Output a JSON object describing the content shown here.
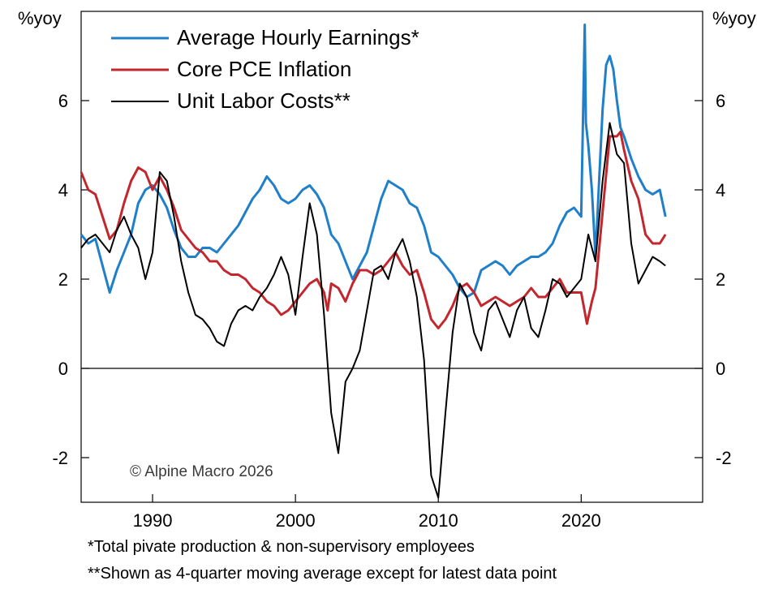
{
  "chart_data": {
    "type": "line",
    "left_axis_unit": "%yoy",
    "right_axis_unit": "%yoy",
    "x_range": [
      1985.0,
      2028.5
    ],
    "ylim": [
      -3.0,
      8.0
    ],
    "x_ticks": [
      1990,
      2000,
      2010,
      2020
    ],
    "x_tick_labels": [
      "1990",
      "2000",
      "2010",
      "2020"
    ],
    "y_ticks": [
      -2,
      0,
      2,
      4,
      6
    ],
    "y_tick_labels": [
      "-2",
      "0",
      "2",
      "4",
      "6"
    ],
    "zero_line": true,
    "grid": false,
    "legend_position": "top-left",
    "watermark": "© Alpine Macro 2026",
    "series": [
      {
        "name": "Average Hourly Earnings*",
        "color": "#1f7fc8",
        "x": [
          1985.0,
          1985.5,
          1986.0,
          1986.5,
          1987.0,
          1987.5,
          1988.0,
          1988.5,
          1989.0,
          1989.5,
          1990.0,
          1990.5,
          1991.0,
          1991.5,
          1992.0,
          1992.5,
          1993.0,
          1993.5,
          1994.0,
          1994.5,
          1995.0,
          1995.5,
          1996.0,
          1996.5,
          1997.0,
          1997.5,
          1998.0,
          1998.5,
          1999.0,
          1999.5,
          2000.0,
          2000.5,
          2001.0,
          2001.5,
          2002.0,
          2002.5,
          2003.0,
          2003.5,
          2004.0,
          2004.5,
          2005.0,
          2005.5,
          2006.0,
          2006.5,
          2007.0,
          2007.5,
          2008.0,
          2008.5,
          2009.0,
          2009.5,
          2010.0,
          2010.5,
          2011.0,
          2011.5,
          2012.0,
          2012.5,
          2013.0,
          2013.5,
          2014.0,
          2014.5,
          2015.0,
          2015.5,
          2016.0,
          2016.5,
          2017.0,
          2017.5,
          2018.0,
          2018.5,
          2019.0,
          2019.5,
          2020.0,
          2020.25,
          2020.33,
          2020.5,
          2020.75,
          2021.0,
          2021.3,
          2021.5,
          2021.75,
          2022.0,
          2022.25,
          2022.5,
          2022.75,
          2023.0,
          2023.5,
          2024.0,
          2024.5,
          2025.0,
          2025.5,
          2025.9
        ],
        "values": [
          3.0,
          2.8,
          2.9,
          2.3,
          1.7,
          2.2,
          2.6,
          3.0,
          3.7,
          4.0,
          4.1,
          3.9,
          3.6,
          3.1,
          2.7,
          2.5,
          2.5,
          2.7,
          2.7,
          2.6,
          2.8,
          3.0,
          3.2,
          3.5,
          3.8,
          4.0,
          4.3,
          4.1,
          3.8,
          3.7,
          3.8,
          4.0,
          4.1,
          3.9,
          3.6,
          3.0,
          2.8,
          2.4,
          2.0,
          2.3,
          2.6,
          3.2,
          3.8,
          4.2,
          4.1,
          4.0,
          3.7,
          3.6,
          3.2,
          2.6,
          2.5,
          2.3,
          2.1,
          1.8,
          1.6,
          1.7,
          2.2,
          2.3,
          2.4,
          2.3,
          2.1,
          2.3,
          2.4,
          2.5,
          2.5,
          2.6,
          2.8,
          3.2,
          3.5,
          3.6,
          3.4,
          7.7,
          5.5,
          5.0,
          4.0,
          2.5,
          4.5,
          5.8,
          6.8,
          7.0,
          6.7,
          6.0,
          5.4,
          5.2,
          4.7,
          4.3,
          4.0,
          3.9,
          4.0,
          3.4
        ]
      },
      {
        "name": "Core PCE Inflation",
        "color": "#c1272d",
        "x": [
          1985.0,
          1985.5,
          1986.0,
          1986.5,
          1987.0,
          1987.5,
          1988.0,
          1988.5,
          1989.0,
          1989.5,
          1990.0,
          1990.5,
          1991.0,
          1991.5,
          1992.0,
          1992.5,
          1993.0,
          1993.5,
          1994.0,
          1994.5,
          1995.0,
          1995.5,
          1996.0,
          1996.5,
          1997.0,
          1997.5,
          1998.0,
          1998.5,
          1999.0,
          1999.5,
          2000.0,
          2000.5,
          2001.0,
          2001.5,
          2002.0,
          2002.25,
          2002.5,
          2003.0,
          2003.5,
          2004.0,
          2004.5,
          2005.0,
          2005.5,
          2006.0,
          2006.5,
          2007.0,
          2007.5,
          2008.0,
          2008.5,
          2009.0,
          2009.5,
          2010.0,
          2010.5,
          2011.0,
          2011.5,
          2012.0,
          2012.5,
          2013.0,
          2013.5,
          2014.0,
          2014.5,
          2015.0,
          2015.5,
          2016.0,
          2016.5,
          2017.0,
          2017.5,
          2018.0,
          2018.5,
          2019.0,
          2019.5,
          2020.0,
          2020.4,
          2020.75,
          2021.0,
          2021.5,
          2022.0,
          2022.5,
          2022.75,
          2023.0,
          2023.5,
          2024.0,
          2024.5,
          2025.0,
          2025.5,
          2025.9
        ],
        "values": [
          4.4,
          4.0,
          3.9,
          3.4,
          2.9,
          3.1,
          3.7,
          4.2,
          4.5,
          4.4,
          4.0,
          4.3,
          4.0,
          3.6,
          3.1,
          2.9,
          2.7,
          2.6,
          2.4,
          2.4,
          2.2,
          2.1,
          2.1,
          2.0,
          1.8,
          1.7,
          1.5,
          1.4,
          1.2,
          1.3,
          1.5,
          1.7,
          1.9,
          2.0,
          1.7,
          1.3,
          1.9,
          1.8,
          1.5,
          1.9,
          2.2,
          2.2,
          2.1,
          2.2,
          2.4,
          2.6,
          2.3,
          2.1,
          2.2,
          1.7,
          1.1,
          0.9,
          1.1,
          1.4,
          1.8,
          1.9,
          1.7,
          1.4,
          1.5,
          1.6,
          1.5,
          1.4,
          1.5,
          1.6,
          1.8,
          1.6,
          1.6,
          1.8,
          2.0,
          1.7,
          1.7,
          1.7,
          1.0,
          1.5,
          1.8,
          3.5,
          5.2,
          5.2,
          5.3,
          4.9,
          4.2,
          3.8,
          3.0,
          2.8,
          2.8,
          3.0
        ]
      },
      {
        "name": "Unit Labor Costs**",
        "color": "#000000",
        "x": [
          1985.0,
          1985.5,
          1986.0,
          1986.5,
          1987.0,
          1987.5,
          1988.0,
          1988.5,
          1989.0,
          1989.5,
          1990.0,
          1990.5,
          1991.0,
          1991.5,
          1992.0,
          1992.5,
          1993.0,
          1993.5,
          1994.0,
          1994.5,
          1995.0,
          1995.5,
          1996.0,
          1996.5,
          1997.0,
          1997.5,
          1998.0,
          1998.5,
          1999.0,
          1999.5,
          2000.0,
          2000.5,
          2001.0,
          2001.5,
          2002.0,
          2002.5,
          2003.0,
          2003.5,
          2004.0,
          2004.5,
          2005.0,
          2005.5,
          2006.0,
          2006.5,
          2007.0,
          2007.5,
          2008.0,
          2008.5,
          2009.0,
          2009.5,
          2010.0,
          2010.5,
          2011.0,
          2011.5,
          2012.0,
          2012.5,
          2013.0,
          2013.5,
          2014.0,
          2014.5,
          2015.0,
          2015.5,
          2016.0,
          2016.5,
          2017.0,
          2017.5,
          2018.0,
          2018.5,
          2019.0,
          2019.5,
          2020.0,
          2020.5,
          2021.0,
          2021.5,
          2022.0,
          2022.5,
          2023.0,
          2023.5,
          2024.0,
          2024.5,
          2025.0,
          2025.5,
          2025.9
        ],
        "values": [
          2.7,
          2.9,
          3.0,
          2.8,
          2.6,
          3.1,
          3.4,
          3.0,
          2.7,
          2.0,
          2.6,
          4.4,
          4.2,
          3.4,
          2.4,
          1.7,
          1.2,
          1.1,
          0.9,
          0.6,
          0.5,
          1.0,
          1.3,
          1.4,
          1.3,
          1.6,
          1.8,
          2.1,
          2.5,
          2.1,
          1.2,
          2.5,
          3.7,
          3.0,
          1.2,
          -1.0,
          -1.9,
          -0.3,
          0.0,
          0.4,
          1.3,
          2.2,
          2.3,
          2.0,
          2.6,
          2.9,
          2.4,
          1.6,
          0.2,
          -2.4,
          -2.9,
          -1.0,
          0.8,
          1.9,
          1.6,
          0.8,
          0.4,
          1.3,
          1.5,
          1.1,
          0.7,
          1.3,
          1.6,
          0.9,
          0.7,
          1.3,
          2.0,
          1.9,
          1.6,
          1.8,
          2.0,
          3.0,
          2.4,
          4.2,
          5.5,
          4.8,
          4.6,
          2.8,
          1.9,
          2.2,
          2.5,
          2.4,
          2.3
        ]
      }
    ]
  },
  "footnotes": {
    "line1": "*Total pivate production & non-supervisory employees",
    "line2": "**Shown as 4-quarter moving average except for latest data point"
  }
}
